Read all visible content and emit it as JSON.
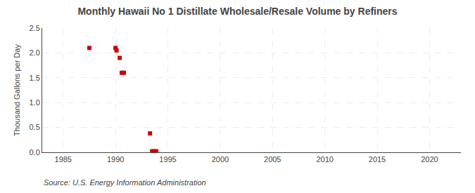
{
  "chart_data": {
    "type": "scatter",
    "title": "Monthly Hawaii No 1 Distillate Wholesale/Resale Volume by Refiners",
    "ylabel": "Thousand Gallons per Day",
    "annotations": [
      "Source: U.S. Energy Information Administration"
    ],
    "x": [
      1987.5,
      1990.0,
      1990.1,
      1990.4,
      1990.6,
      1990.8,
      1993.3,
      1993.5,
      1993.7,
      1993.9
    ],
    "values": [
      2.1,
      2.1,
      2.05,
      1.9,
      1.6,
      1.6,
      0.38,
      0.02,
      0.02,
      0.02
    ],
    "color": "#cc0000",
    "marker": "square",
    "xlim": [
      1983,
      2023
    ],
    "ylim": [
      0.0,
      2.5
    ],
    "xticks": [
      1985,
      1990,
      1995,
      2000,
      2005,
      2010,
      2015,
      2020
    ],
    "yticks": [
      {
        "value": 0.0,
        "label": "0.0"
      },
      0.5,
      {
        "value": 1.0,
        "label": "1.0"
      },
      1.5,
      {
        "value": 2.0,
        "label": "2.0"
      },
      2.5
    ],
    "grid": true
  }
}
